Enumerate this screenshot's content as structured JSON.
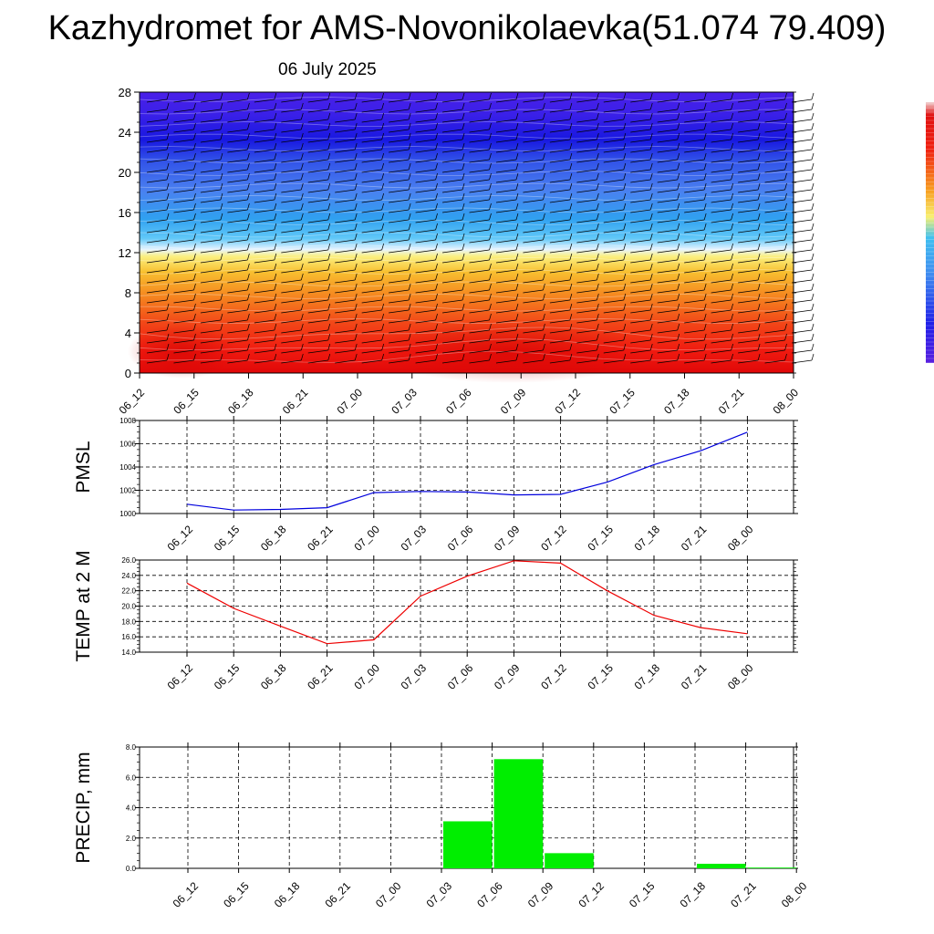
{
  "header": {
    "title": "Kazhydromet for AMS-Novonikolaevka(51.074 79.409)",
    "subtitle": "06 July 2025"
  },
  "chart_data": [
    {
      "type": "heatmap",
      "id": "cross-section",
      "title": "",
      "x_tick_labels": [
        "06_12",
        "06_15",
        "06_18",
        "06_21",
        "07_00",
        "07_03",
        "07_06",
        "07_09",
        "07_12",
        "07_15",
        "07_18",
        "07_21",
        "08_00"
      ],
      "y_ticks": [
        0,
        4,
        8,
        12,
        16,
        20,
        24,
        28
      ],
      "y_tick_labels": [
        "0",
        "4",
        "8",
        "12",
        "16",
        "20",
        "24",
        "28"
      ],
      "ylim": [
        0,
        28
      ],
      "ylabel": "",
      "colors": {
        "warm": "#e81010",
        "mid_warm": "#f08018",
        "neutral": "#f8f0a0",
        "cool": "#30a8f0",
        "cold": "#2828e8",
        "coldest": "#4818e0"
      },
      "overlay": "wind-barbs"
    },
    {
      "type": "line",
      "id": "pmsl",
      "ylabel": "PMSL",
      "categories": [
        "06_12",
        "06_15",
        "06_18",
        "06_21",
        "07_00",
        "07_03",
        "07_06",
        "07_09",
        "07_12",
        "07_15",
        "07_18",
        "07_21",
        "08_00"
      ],
      "values": [
        1000.8,
        1000.3,
        1000.35,
        1000.5,
        1001.8,
        1001.9,
        1001.85,
        1001.6,
        1001.65,
        1002.7,
        1004.2,
        1005.4,
        1007.0
      ],
      "ylim": [
        1000,
        1008
      ],
      "y_ticks": [
        1000,
        1002,
        1004,
        1006,
        1008
      ],
      "y_tick_labels": [
        "1000",
        "1002",
        "1004",
        "1006",
        "1008"
      ],
      "color": "#0000dd",
      "grid": true
    },
    {
      "type": "line",
      "id": "temp",
      "ylabel": "TEMP at 2 M",
      "categories": [
        "06_12",
        "06_15",
        "06_18",
        "06_21",
        "07_00",
        "07_03",
        "07_06",
        "07_09",
        "07_12",
        "07_15",
        "07_18",
        "07_21",
        "08_00"
      ],
      "values": [
        23.0,
        19.7,
        17.4,
        15.1,
        15.6,
        21.3,
        23.9,
        25.9,
        25.6,
        22.0,
        18.8,
        17.2,
        16.4
      ],
      "ylim": [
        14,
        26
      ],
      "y_ticks": [
        14,
        16,
        18,
        20,
        22,
        24,
        26
      ],
      "y_tick_labels": [
        "14.0",
        "16.0",
        "18.0",
        "20.0",
        "22.0",
        "24.0",
        "26.0"
      ],
      "color": "#ee0000",
      "grid": true
    },
    {
      "type": "bar",
      "id": "precip",
      "ylabel": "PRECIP, mm",
      "categories": [
        "06_12",
        "06_15",
        "06_18",
        "06_21",
        "07_00",
        "07_03",
        "07_06",
        "07_09",
        "07_12",
        "07_15",
        "07_18",
        "07_21",
        "08_00"
      ],
      "values": [
        0,
        0,
        0,
        0,
        0,
        0,
        3.1,
        7.2,
        1.0,
        0,
        0,
        0.3,
        0.05
      ],
      "ylim": [
        0,
        8
      ],
      "y_ticks": [
        0,
        2,
        4,
        6,
        8
      ],
      "y_tick_labels": [
        "0.0",
        "2.0",
        "4.0",
        "6.0",
        "8.0"
      ],
      "color": "#00ee00",
      "grid": true
    }
  ]
}
